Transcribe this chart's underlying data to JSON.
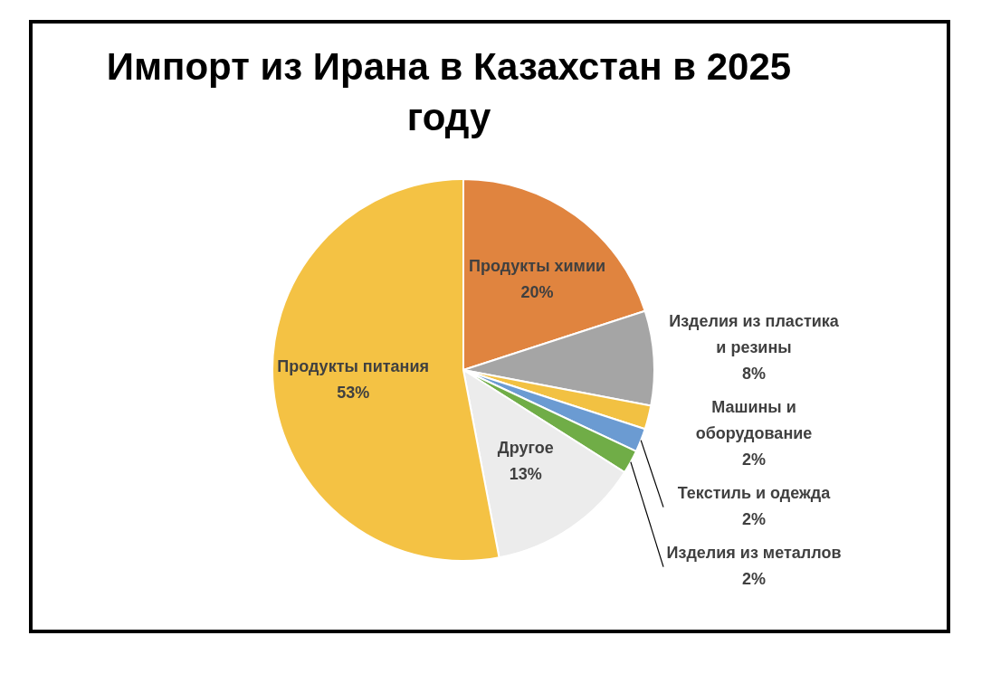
{
  "chart_data": {
    "type": "pie",
    "title": "Импорт из Ирана в Казахстан в 2025 году",
    "categories": [
      "Продукты химии",
      "Изделия из пластика и резины",
      "Машины и оборудование",
      "Текстиль и одежда",
      "Изделия из металлов",
      "Другое",
      "Продукты питания"
    ],
    "values": [
      20,
      8,
      2,
      2,
      2,
      13,
      53
    ],
    "value_labels": [
      "20%",
      "8%",
      "2%",
      "2%",
      "2%",
      "13%",
      "53%"
    ],
    "colors": [
      "#e0843f",
      "#a5a5a5",
      "#f2c142",
      "#6b9bd2",
      "#70ad47",
      "#ececec",
      "#f4c244"
    ],
    "legend": false
  }
}
